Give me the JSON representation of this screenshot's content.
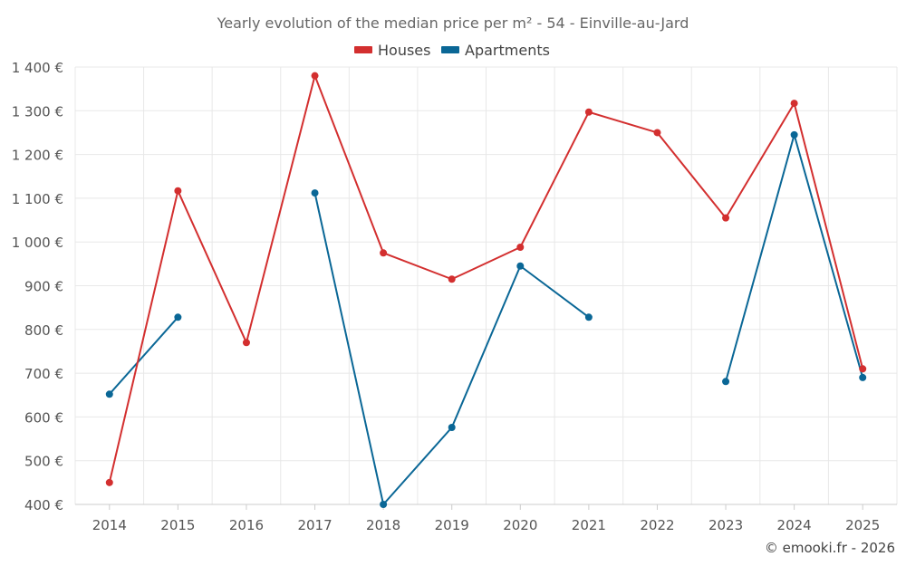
{
  "chart_data": {
    "type": "line",
    "title": "Yearly evolution of the median price per m² - 54 - Einville-au-Jard",
    "xlabel": "",
    "ylabel": "",
    "x": [
      "2014",
      "2015",
      "2016",
      "2017",
      "2018",
      "2019",
      "2020",
      "2021",
      "2022",
      "2023",
      "2024",
      "2025"
    ],
    "ylim": [
      400,
      1400
    ],
    "yticks": [
      400,
      500,
      600,
      700,
      800,
      900,
      1000,
      1100,
      1200,
      1300,
      1400
    ],
    "ytick_labels": [
      "400 €",
      "500 €",
      "600 €",
      "700 €",
      "800 €",
      "900 €",
      "1 000 €",
      "1 100 €",
      "1 200 €",
      "1 300 €",
      "1 400 €"
    ],
    "grid": true,
    "legend_position": "top-center",
    "series": [
      {
        "name": "Houses",
        "color": "#d32f2f",
        "values": [
          450,
          1117,
          770,
          1380,
          975,
          915,
          988,
          1297,
          1250,
          1055,
          1317,
          710
        ]
      },
      {
        "name": "Apartments",
        "color": "#0a6796",
        "values": [
          652,
          828,
          null,
          1112,
          400,
          576,
          945,
          828,
          null,
          681,
          1245,
          690
        ]
      }
    ],
    "copyright": "© emooki.fr - 2026"
  }
}
